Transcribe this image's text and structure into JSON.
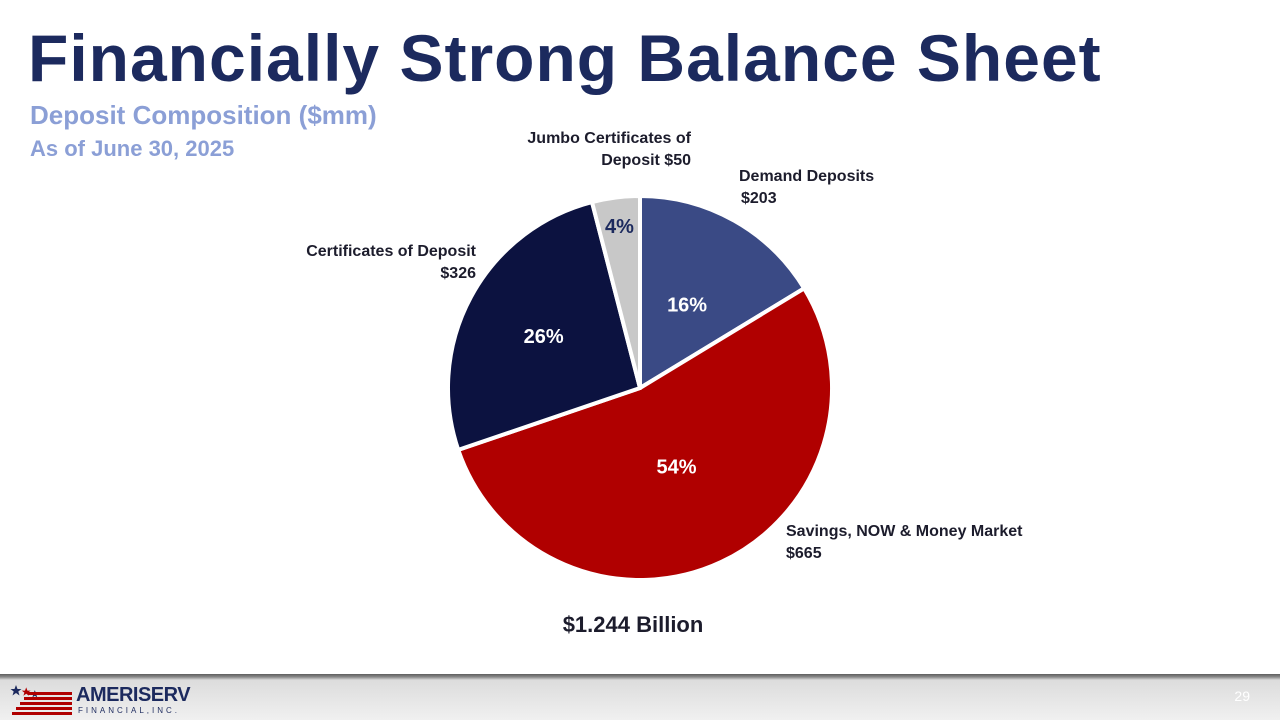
{
  "slide": {
    "title": "Financially Strong Balance Sheet",
    "subtitle": "Deposit Composition ($mm)",
    "date": "As of June 30, 2025",
    "total": "$1.244 Billion",
    "page_number": "29"
  },
  "logo": {
    "name": "AMERISERV",
    "sub": "FINANCIAL,INC."
  },
  "colors": {
    "title": "#1c2a5e",
    "subtitle": "#8b9fd6",
    "demand": "#3a4a85",
    "savings": "#b00000",
    "certificates": "#0c1240",
    "jumbo": "#c8c8c8"
  },
  "chart_data": {
    "type": "pie",
    "start": "12 o'clock, clockwise",
    "unit": "$mm",
    "slices": [
      {
        "label_line1": "Demand Deposits",
        "label_line2": "$203",
        "value": 203,
        "pct_label": "16%",
        "color": "#3a4a85",
        "pct_color": "#ffffff"
      },
      {
        "label_line1": "Savings, NOW & Money Market",
        "label_line2": "$665",
        "value": 665,
        "pct_label": "54%",
        "color": "#b00000",
        "pct_color": "#ffffff"
      },
      {
        "label_line1": "Certificates of Deposit",
        "label_line2": "$326",
        "value": 326,
        "pct_label": "26%",
        "color": "#0c1240",
        "pct_color": "#ffffff"
      },
      {
        "label_line1": "Jumbo Certificates of",
        "label_line2": "Deposit  $50",
        "value": 50,
        "pct_label": "4%",
        "color": "#c8c8c8",
        "pct_color": "#1c2a5e"
      }
    ]
  }
}
